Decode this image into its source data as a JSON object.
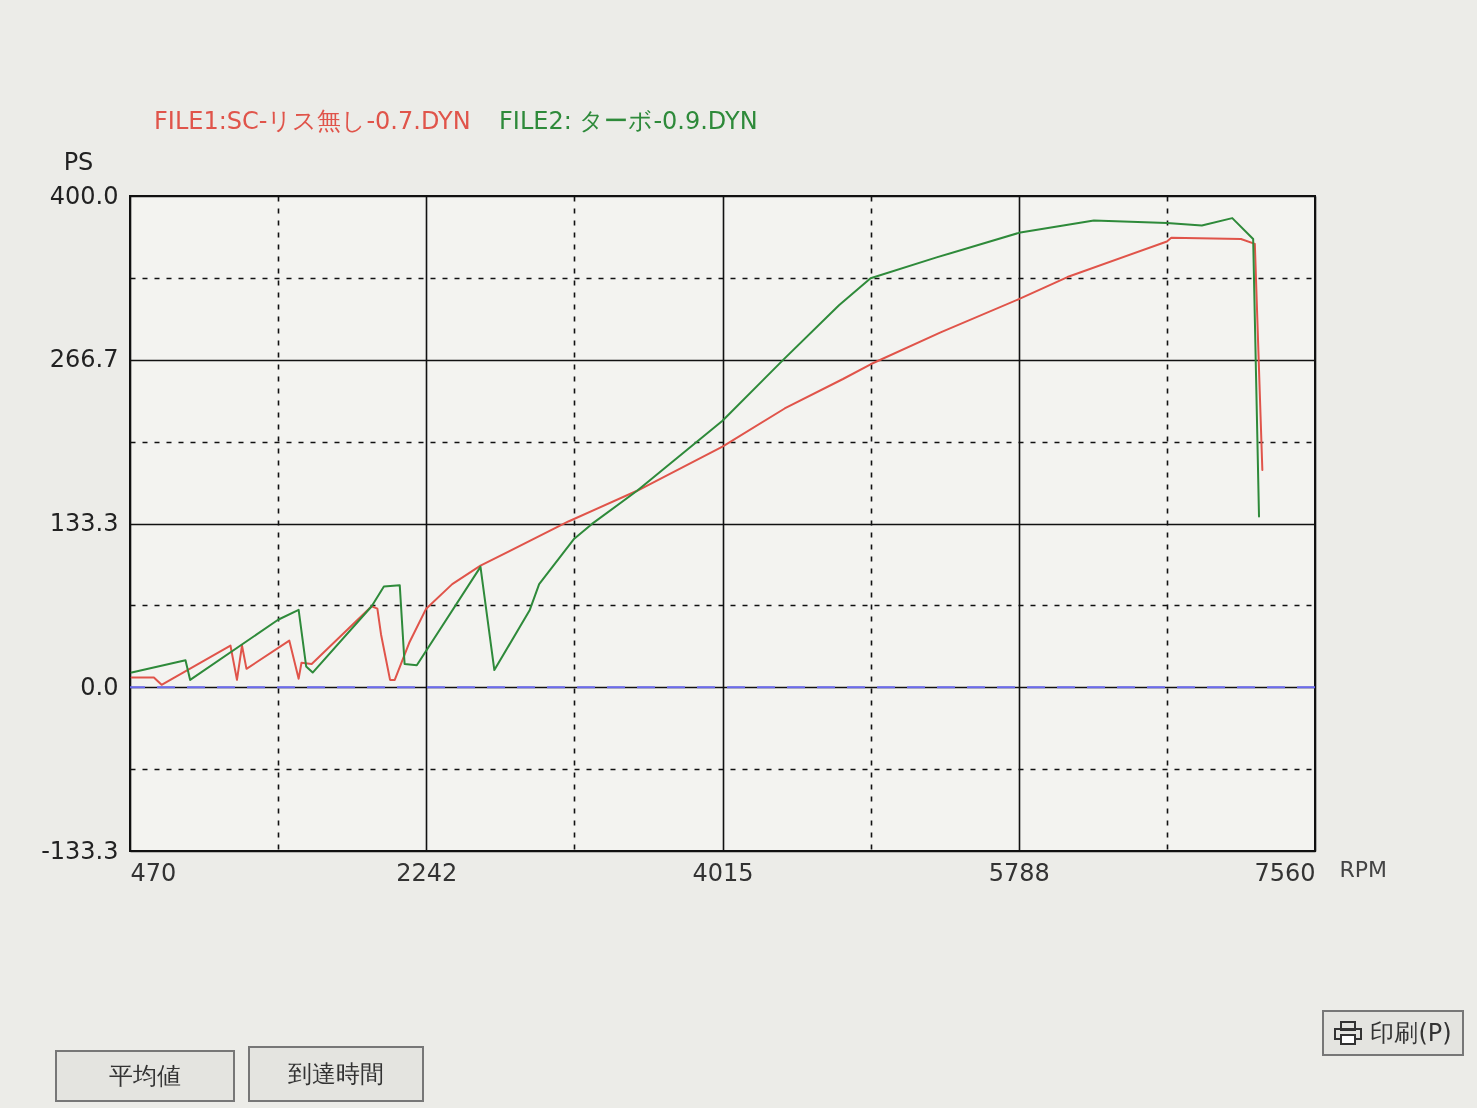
{
  "chart_data": {
    "type": "line",
    "xlabel": "RPM",
    "ylabel": "PS",
    "xlim": [
      470,
      7560
    ],
    "xticks": [
      470,
      {
        "value": 1356,
        "label": null
      },
      2242,
      {
        "value": 3129,
        "label": null
      },
      4015,
      {
        "value": 4901,
        "label": null
      },
      5788,
      {
        "value": 6674,
        "label": null
      },
      7560
    ],
    "ylim": [
      -133.3,
      400
    ],
    "yticks": [
      -133.3,
      {
        "value": -66.7,
        "label": null
      },
      {
        "value": 0,
        "label": "0.0"
      },
      {
        "value": 66.7,
        "label": null
      },
      133.3,
      {
        "value": 200,
        "label": null
      },
      266.7,
      {
        "value": 333.3,
        "label": null
      },
      {
        "value": 400,
        "label": "400.0"
      }
    ],
    "grid": true,
    "legend": "top",
    "series": [
      {
        "name": "FILE1:SC-リス無し-0.7.DYN",
        "color": "#e0544a",
        "x": [
          480,
          613,
          659,
          1071,
          1110,
          1140,
          1167,
          1423,
          1479,
          1496,
          1557,
          1916,
          1950,
          1972,
          2026,
          2054,
          2140,
          2242,
          2398,
          2567,
          3093,
          3504,
          4015,
          4387,
          4736,
          4901,
          5320,
          5788,
          6079,
          6674,
          6700,
          7117,
          7200,
          7245
        ],
        "values": [
          8,
          8,
          2,
          34,
          6,
          34,
          15,
          38,
          7,
          20,
          19,
          66,
          64,
          43,
          6,
          6,
          36,
          64,
          84,
          99,
          135,
          160,
          196,
          227,
          251,
          263,
          289,
          316,
          334,
          363,
          366,
          365,
          361,
          177
        ]
      },
      {
        "name": "FILE2: ターボ-0.9.DYN",
        "color": "#2e8a3a",
        "x": [
          480,
          802,
          830,
          1356,
          1479,
          1524,
          1563,
          1916,
          1989,
          2084,
          2113,
          2186,
          2567,
          2650,
          2862,
          2918,
          3128,
          3234,
          3504,
          4015,
          4381,
          4712,
          4901,
          5296,
          5788,
          6237,
          6674,
          6883,
          7065,
          7190,
          7225
        ],
        "values": [
          12,
          22,
          6,
          55,
          63,
          17,
          12,
          66,
          82,
          83,
          19,
          18,
          98,
          14,
          63,
          84,
          121,
          133,
          160,
          217,
          267,
          311,
          333,
          350,
          370,
          380,
          378,
          376,
          382,
          365,
          139
        ]
      }
    ],
    "ref_lines": [
      {
        "axis": "y",
        "value": 0,
        "color": "#6b6bef",
        "line_style": "dashed"
      }
    ],
    "annotations": [
      "平均値",
      "到達時間",
      "印刷(P)"
    ]
  }
}
